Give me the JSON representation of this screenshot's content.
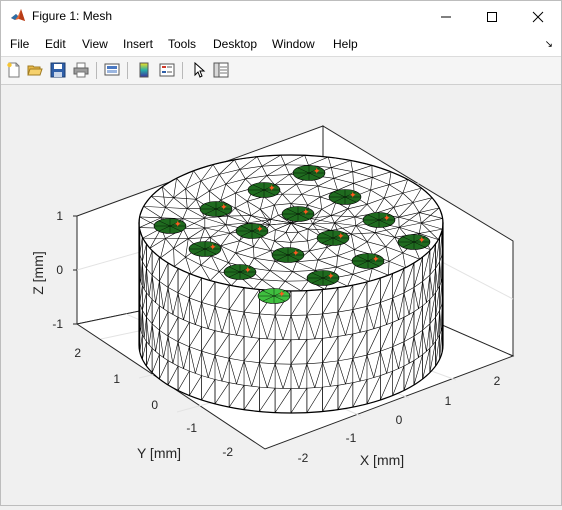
{
  "window": {
    "title": "Figure 1: Mesh"
  },
  "menu": [
    "File",
    "Edit",
    "View",
    "Insert",
    "Tools",
    "Desktop",
    "Window",
    "Help"
  ],
  "toolbar": {
    "buttons": [
      "new-figure-icon",
      "open-file-icon",
      "save-icon",
      "print-icon",
      "link-plot-icon",
      "colorbar-icon",
      "legend-icon",
      "pointer-icon",
      "property-inspector-icon"
    ]
  },
  "plot": {
    "z_ticks": [
      "1",
      "0",
      "-1"
    ],
    "y_ticks": [
      "2",
      "1",
      "0",
      "-1",
      "-2"
    ],
    "x_ticks": [
      "-2",
      "-1",
      "0",
      "1",
      "2"
    ],
    "z_label": "Z [mm]",
    "y_label": "Y [mm]",
    "x_label": "X [mm]",
    "colors": {
      "mesh": "#000000",
      "electrode": "#1f6b1f",
      "electrode_highlight": "#3fbf3f",
      "marker": "#ff5a1f"
    }
  }
}
